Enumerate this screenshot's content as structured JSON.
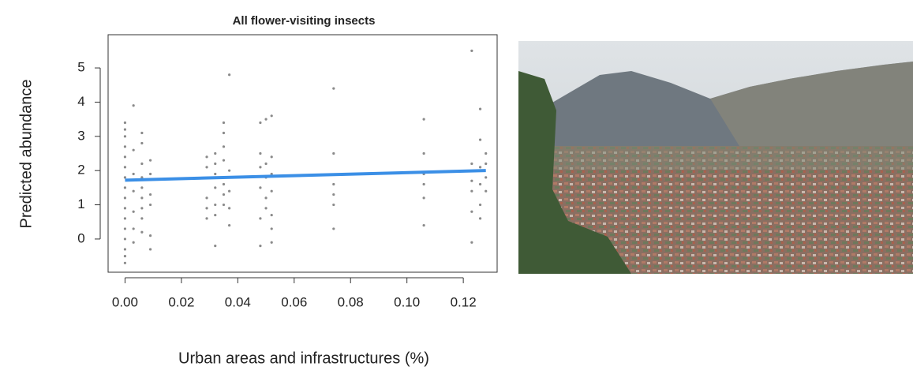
{
  "chart_data": {
    "type": "scatter",
    "title": "All flower-visiting insects",
    "xlabel": "Urban areas and infrastructures (%)",
    "ylabel": "Predicted abundance",
    "xlim": [
      -0.006,
      0.132
    ],
    "ylim": [
      -0.97,
      5.97
    ],
    "xticks": [
      {
        "value": 0,
        "label": "0.00"
      },
      {
        "value": 0.02,
        "label": "0.02"
      },
      {
        "value": 0.04,
        "label": "0.04"
      },
      {
        "value": 0.06,
        "label": "0.06"
      },
      {
        "value": 0.08,
        "label": "0.08"
      },
      {
        "value": 0.1,
        "label": "0.10"
      },
      {
        "value": 0.12,
        "label": "0.12"
      }
    ],
    "yticks": [
      0,
      1,
      2,
      3,
      4,
      5
    ],
    "series": [
      {
        "type": "scatter",
        "color": "#8a8a8a",
        "x": [
          0,
          0,
          0,
          0,
          0,
          0,
          0,
          0,
          0,
          0,
          0,
          0,
          0,
          0,
          0,
          0,
          0.003,
          0.003,
          0.003,
          0.003,
          0.003,
          0.003,
          0.003,
          0.006,
          0.006,
          0.006,
          0.006,
          0.006,
          0.006,
          0.006,
          0.006,
          0.006,
          0.009,
          0.009,
          0.009,
          0.009,
          0.009,
          0.009,
          0.029,
          0.029,
          0.029,
          0.029,
          0.029,
          0.032,
          0.032,
          0.032,
          0.032,
          0.032,
          0.032,
          0.032,
          0.035,
          0.035,
          0.035,
          0.035,
          0.035,
          0.035,
          0.035,
          0.037,
          0.037,
          0.037,
          0.037,
          0.037,
          0.048,
          0.048,
          0.048,
          0.048,
          0.048,
          0.048,
          0.05,
          0.05,
          0.05,
          0.05,
          0.05,
          0.052,
          0.052,
          0.052,
          0.052,
          0.052,
          0.052,
          0.052,
          0.074,
          0.074,
          0.074,
          0.074,
          0.074,
          0.074,
          0.106,
          0.106,
          0.106,
          0.106,
          0.106,
          0.106,
          0.123,
          0.123,
          0.123,
          0.123,
          0.123,
          0.123,
          0.126,
          0.126,
          0.126,
          0.126,
          0.126,
          0.126,
          0.128,
          0.128,
          0.128,
          0.128
        ],
        "values": [
          -0.7,
          -0.5,
          -0.3,
          0,
          0.3,
          0.6,
          0.9,
          1.2,
          1.5,
          1.8,
          2.1,
          2.4,
          2.7,
          3.0,
          3.2,
          3.4,
          3.9,
          2.6,
          1.9,
          1.4,
          0.8,
          0.3,
          -0.1,
          3.1,
          2.8,
          2.2,
          1.8,
          1.5,
          1.2,
          0.9,
          0.6,
          0.2,
          2.3,
          1.9,
          1.3,
          1.0,
          0.1,
          -0.3,
          2.4,
          2.1,
          1.2,
          0.9,
          0.6,
          2.5,
          2.2,
          1.9,
          1.5,
          1.0,
          0.7,
          -0.2,
          3.4,
          3.1,
          2.7,
          2.3,
          1.6,
          1.3,
          1.0,
          4.8,
          2.0,
          1.4,
          0.9,
          0.4,
          3.4,
          2.5,
          2.1,
          1.5,
          0.6,
          -0.2,
          3.5,
          2.2,
          1.8,
          1.2,
          0.9,
          3.6,
          2.4,
          1.9,
          1.4,
          0.7,
          0.3,
          -0.1,
          4.4,
          2.5,
          1.6,
          1.3,
          1.0,
          0.3,
          3.5,
          2.5,
          1.9,
          1.6,
          1.2,
          0.4,
          5.5,
          2.2,
          1.7,
          1.4,
          0.8,
          -0.1,
          3.8,
          2.9,
          2.1,
          1.6,
          1.0,
          0.6,
          2.5,
          2.2,
          1.8,
          1.4
        ]
      },
      {
        "type": "line",
        "color": "#3b8fe6",
        "x": [
          0,
          0.128
        ],
        "values": [
          1.72,
          2.0
        ]
      }
    ]
  }
}
